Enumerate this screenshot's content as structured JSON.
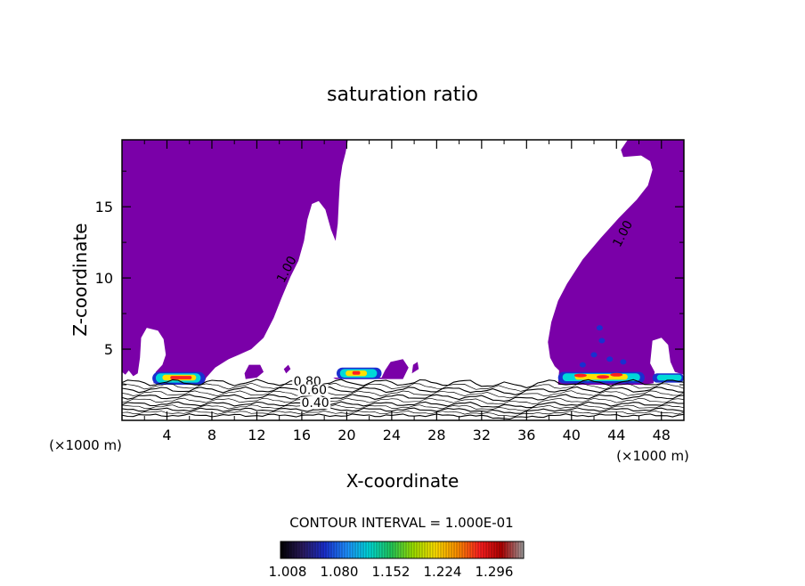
{
  "chart_data": {
    "type": "heatmap",
    "title": "saturation ratio",
    "xlabel": "X-coordinate",
    "ylabel": "Z-coordinate",
    "x_unit": "(×1000 m)",
    "xlim": [
      0,
      50
    ],
    "ylim": [
      0,
      19.7
    ],
    "x_ticks": [
      4,
      8,
      12,
      16,
      20,
      24,
      28,
      32,
      36,
      40,
      44,
      48
    ],
    "y_ticks": [
      5,
      10,
      15
    ],
    "contour_interval_text": "CONTOUR INTERVAL = 1.000E-01",
    "contour_labels": [
      {
        "text": "1.00",
        "x": 14.9,
        "z": 10.5
      },
      {
        "text": "1.00",
        "x": 44.8,
        "z": 13.0
      },
      {
        "text": "0.80",
        "x": 16.5,
        "z": 2.5
      },
      {
        "text": "0.60",
        "x": 17.0,
        "z": 1.9
      },
      {
        "text": "0.40",
        "x": 17.2,
        "z": 1.0
      }
    ],
    "colorbar": {
      "ticks": [
        "1.008",
        "1.080",
        "1.152",
        "1.224",
        "1.296"
      ],
      "colors": [
        "#000000",
        "#2a1a5e",
        "#1a2fd0",
        "#1e90ff",
        "#00d8d8",
        "#22c85a",
        "#9be000",
        "#ffe000",
        "#ff9000",
        "#ff2020",
        "#b00000",
        "#a0a0a0"
      ]
    },
    "colors": {
      "supersaturated_fill": "#7a00a8",
      "hot_core": "#ff2020",
      "warm": "#ffe000",
      "cool": "#00d8d8",
      "deep": "#1a2fd0"
    }
  }
}
